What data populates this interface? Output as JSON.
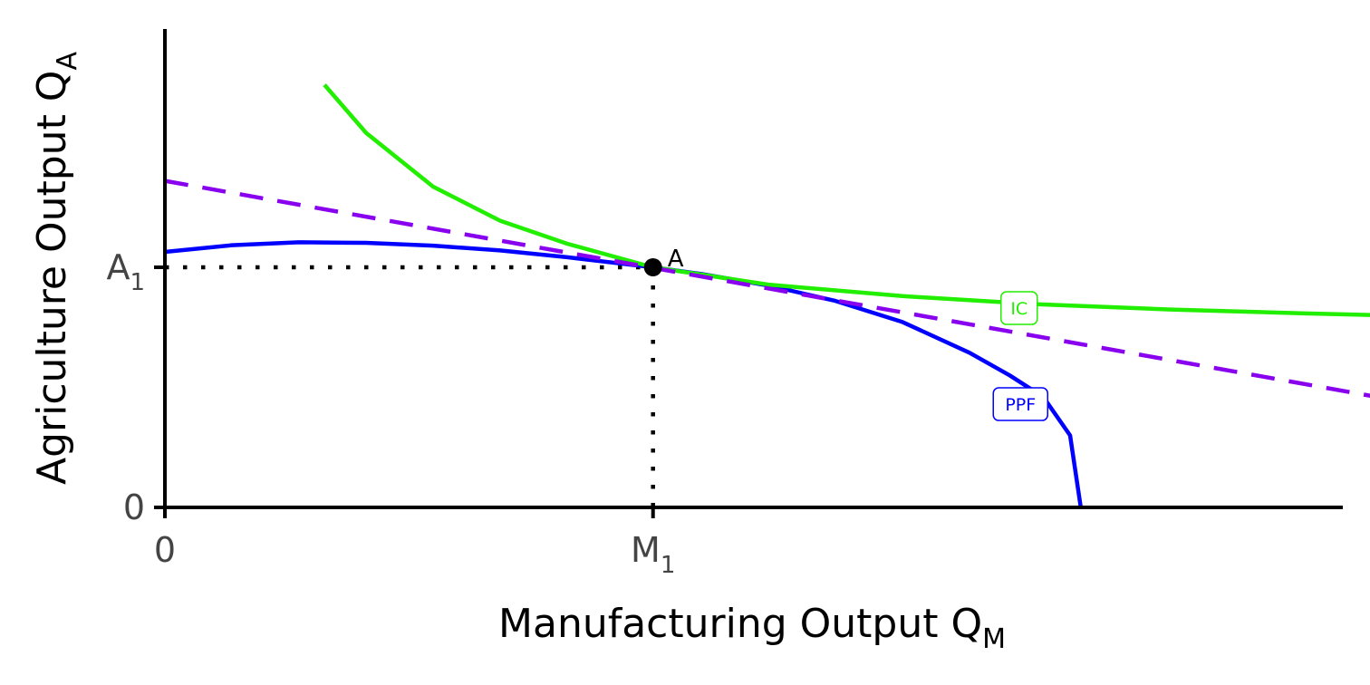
{
  "chart_data": {
    "type": "line",
    "xlabel_main": "Manufacturing Output Q",
    "xlabel_sub": "M",
    "ylabel_main": "Agriculture Output Q",
    "ylabel_sub": "A",
    "xlim": [
      0,
      1.0
    ],
    "ylim": [
      0,
      1.0
    ],
    "x_ticks": [
      {
        "value": 0,
        "main": "0",
        "sub": ""
      },
      {
        "value": 0.364,
        "main": "M",
        "sub": "1"
      }
    ],
    "y_ticks": [
      {
        "value": 0,
        "main": "0",
        "sub": ""
      },
      {
        "value": 0.5,
        "main": "A",
        "sub": "1"
      }
    ],
    "series": [
      {
        "name": "PPF",
        "color": "#0000ff",
        "style": "solid",
        "label_point": [
          0.638,
          0.215
        ],
        "points": [
          [
            0,
            0.532
          ],
          [
            0.05,
            0.546
          ],
          [
            0.1,
            0.552
          ],
          [
            0.15,
            0.551
          ],
          [
            0.2,
            0.545
          ],
          [
            0.25,
            0.535
          ],
          [
            0.3,
            0.521
          ],
          [
            0.364,
            0.5
          ],
          [
            0.4,
            0.486
          ],
          [
            0.45,
            0.462
          ],
          [
            0.5,
            0.43
          ],
          [
            0.55,
            0.386
          ],
          [
            0.6,
            0.322
          ],
          [
            0.63,
            0.275
          ],
          [
            0.655,
            0.23
          ],
          [
            0.675,
            0.15
          ],
          [
            0.683,
            0.0
          ]
        ]
      },
      {
        "name": "IC",
        "color": "#22ee00",
        "style": "solid",
        "label_point": [
          0.637,
          0.415
        ],
        "points": [
          [
            0.119,
            0.88
          ],
          [
            0.15,
            0.78
          ],
          [
            0.2,
            0.668
          ],
          [
            0.25,
            0.597
          ],
          [
            0.3,
            0.549
          ],
          [
            0.364,
            0.5
          ],
          [
            0.45,
            0.464
          ],
          [
            0.55,
            0.44
          ],
          [
            0.65,
            0.423
          ],
          [
            0.75,
            0.412
          ],
          [
            0.85,
            0.404
          ],
          [
            0.91,
            0.4
          ]
        ]
      },
      {
        "name": "",
        "color": "#8800ee",
        "style": "dashed",
        "points": [
          [
            0,
            0.68
          ],
          [
            0.91,
            0.227
          ]
        ]
      }
    ],
    "guides": [
      {
        "color": "#000000",
        "style": "dotted",
        "points": [
          [
            0,
            0.5
          ],
          [
            0.364,
            0.5
          ]
        ]
      },
      {
        "color": "#000000",
        "style": "dotted",
        "points": [
          [
            0.364,
            0.5
          ],
          [
            0.364,
            0
          ]
        ]
      }
    ],
    "annotations": [
      {
        "text": "A",
        "x": 0.364,
        "y": 0.5
      }
    ]
  }
}
